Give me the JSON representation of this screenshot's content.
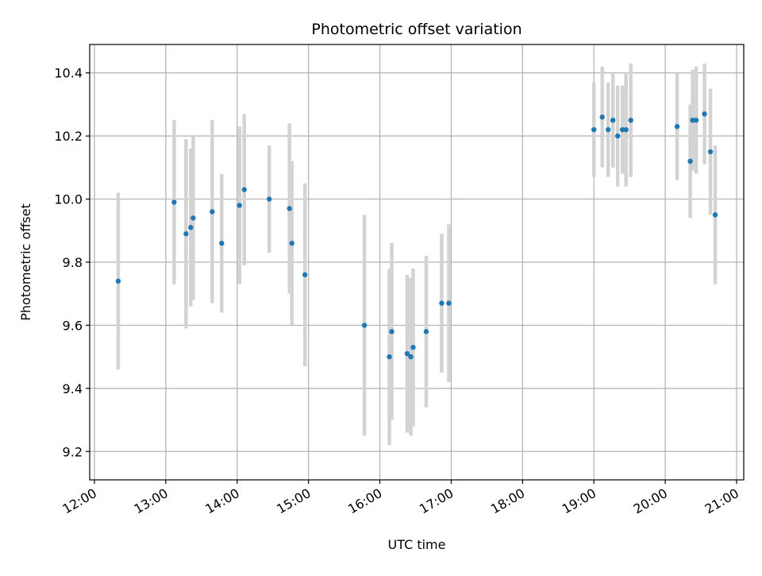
{
  "chart_data": {
    "type": "scatter",
    "title": "Photometric offset variation",
    "xlabel": "UTC time",
    "ylabel": "Photometric offset",
    "xlim": [
      "11:56",
      "21:06"
    ],
    "ylim": [
      9.11,
      10.49
    ],
    "x_ticks": [
      "12:00",
      "13:00",
      "14:00",
      "15:00",
      "16:00",
      "17:00",
      "18:00",
      "19:00",
      "20:00",
      "21:00"
    ],
    "y_ticks": [
      9.2,
      9.4,
      9.6,
      9.8,
      10.0,
      10.2,
      10.4
    ],
    "y_tick_labels": [
      "9.2",
      "9.4",
      "9.6",
      "9.8",
      "10.0",
      "10.2",
      "10.4"
    ],
    "grid": true,
    "point_color": "#1f77b4",
    "errorbar_color": "#d3d3d3",
    "points": [
      {
        "x": "12:20",
        "y": 9.74,
        "err": 0.28
      },
      {
        "x": "13:07",
        "y": 9.99,
        "err": 0.26
      },
      {
        "x": "13:17",
        "y": 9.89,
        "err": 0.3
      },
      {
        "x": "13:21",
        "y": 9.91,
        "err": 0.25
      },
      {
        "x": "13:23",
        "y": 9.94,
        "err": 0.26
      },
      {
        "x": "13:39",
        "y": 9.96,
        "err": 0.29
      },
      {
        "x": "13:47",
        "y": 9.86,
        "err": 0.22
      },
      {
        "x": "14:02",
        "y": 9.98,
        "err": 0.25
      },
      {
        "x": "14:06",
        "y": 10.03,
        "err": 0.24
      },
      {
        "x": "14:27",
        "y": 10.0,
        "err": 0.17
      },
      {
        "x": "14:44",
        "y": 9.97,
        "err": 0.27
      },
      {
        "x": "14:46",
        "y": 9.86,
        "err": 0.26
      },
      {
        "x": "14:57",
        "y": 9.76,
        "err": 0.29
      },
      {
        "x": "15:47",
        "y": 9.6,
        "err": 0.35
      },
      {
        "x": "16:08",
        "y": 9.5,
        "err": 0.28
      },
      {
        "x": "16:10",
        "y": 9.58,
        "err": 0.28
      },
      {
        "x": "16:23",
        "y": 9.51,
        "err": 0.25
      },
      {
        "x": "16:26",
        "y": 9.5,
        "err": 0.25
      },
      {
        "x": "16:28",
        "y": 9.53,
        "err": 0.25
      },
      {
        "x": "16:39",
        "y": 9.58,
        "err": 0.24
      },
      {
        "x": "16:52",
        "y": 9.67,
        "err": 0.22
      },
      {
        "x": "16:58",
        "y": 9.67,
        "err": 0.25
      },
      {
        "x": "19:00",
        "y": 10.22,
        "err": 0.15
      },
      {
        "x": "19:07",
        "y": 10.26,
        "err": 0.16
      },
      {
        "x": "19:12",
        "y": 10.22,
        "err": 0.15
      },
      {
        "x": "19:16",
        "y": 10.25,
        "err": 0.15
      },
      {
        "x": "19:20",
        "y": 10.2,
        "err": 0.16
      },
      {
        "x": "19:24",
        "y": 10.22,
        "err": 0.14
      },
      {
        "x": "19:27",
        "y": 10.22,
        "err": 0.18
      },
      {
        "x": "19:31",
        "y": 10.25,
        "err": 0.18
      },
      {
        "x": "20:10",
        "y": 10.23,
        "err": 0.17
      },
      {
        "x": "20:21",
        "y": 10.12,
        "err": 0.18
      },
      {
        "x": "20:23",
        "y": 10.25,
        "err": 0.16
      },
      {
        "x": "20:26",
        "y": 10.25,
        "err": 0.17
      },
      {
        "x": "20:33",
        "y": 10.27,
        "err": 0.16
      },
      {
        "x": "20:38",
        "y": 10.15,
        "err": 0.2
      },
      {
        "x": "20:42",
        "y": 9.95,
        "err": 0.22
      }
    ]
  }
}
